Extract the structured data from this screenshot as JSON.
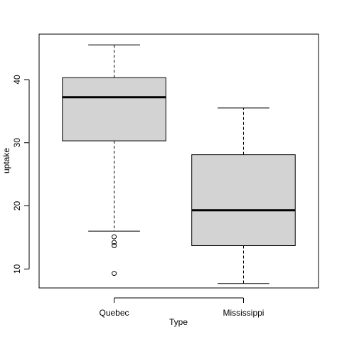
{
  "chart_data": {
    "type": "box",
    "title": "",
    "xlabel": "Type",
    "ylabel": "uptake",
    "ylim": [
      7.0,
      47.2
    ],
    "yticks": [
      10,
      20,
      30,
      40
    ],
    "grid": false,
    "box_fill": "#d3d3d3",
    "stroke": "#000000",
    "categories": [
      "Quebec",
      "Mississippi"
    ],
    "boxes": [
      {
        "name": "Quebec",
        "whisker_low": 16.0,
        "q1": 30.3,
        "median": 37.2,
        "q3": 40.3,
        "whisker_high": 45.5,
        "outliers": [
          15.1,
          14.2,
          13.7,
          9.3
        ]
      },
      {
        "name": "Mississippi",
        "whisker_low": 7.7,
        "q1": 13.7,
        "median": 19.3,
        "q3": 28.1,
        "whisker_high": 35.5,
        "outliers": []
      }
    ]
  }
}
